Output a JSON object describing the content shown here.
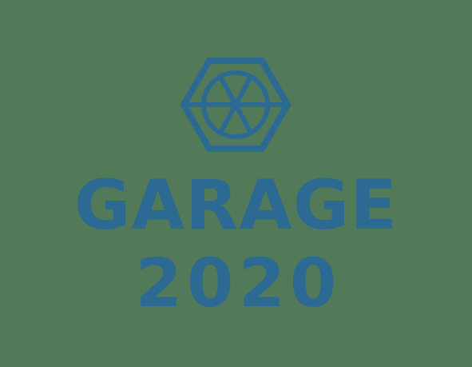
{
  "logo": {
    "word_top": "GARAGE",
    "word_bottom": "2020",
    "icon": "hexagon-wheel-icon",
    "colors": {
      "background": "#527a59",
      "brand": "#2c6a93"
    }
  }
}
